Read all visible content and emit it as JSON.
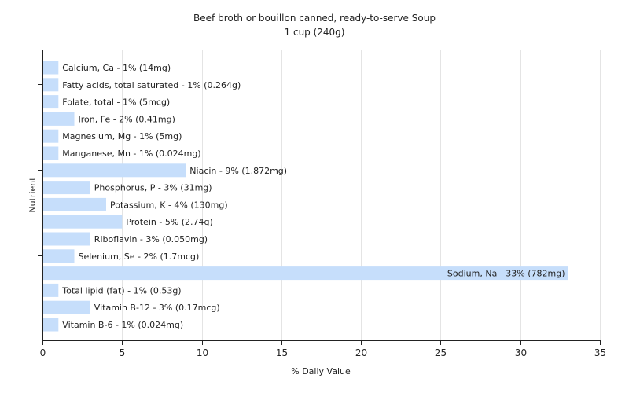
{
  "chart_data": {
    "type": "bar",
    "orientation": "horizontal",
    "title": "Beef broth or bouillon canned, ready-to-serve Soup",
    "subtitle": "1 cup (240g)",
    "xlabel": "% Daily Value",
    "ylabel": "Nutrient",
    "xlim": [
      0,
      35
    ],
    "xticks": [
      0,
      5,
      10,
      15,
      20,
      25,
      30,
      35
    ],
    "grid": true,
    "legend": "none",
    "colors": {
      "bar": "#c6defb",
      "grid": "#e4e4e4",
      "plot_background": "#ffffff",
      "axis": "#222222"
    },
    "categories": [
      "Calcium, Ca",
      "Fatty acids, total saturated",
      "Folate, total",
      "Iron, Fe",
      "Magnesium, Mg",
      "Manganese, Mn",
      "Niacin",
      "Phosphorus, P",
      "Potassium, K",
      "Protein",
      "Riboflavin",
      "Selenium, Se",
      "Sodium, Na",
      "Total lipid (fat)",
      "Vitamin B-12",
      "Vitamin B-6"
    ],
    "values": [
      1,
      1,
      1,
      2,
      1,
      1,
      9,
      3,
      4,
      5,
      3,
      2,
      33,
      1,
      3,
      1
    ],
    "labels": [
      "Calcium, Ca - 1% (14mg)",
      "Fatty acids, total saturated - 1% (0.264g)",
      "Folate, total - 1% (5mcg)",
      "Iron, Fe - 2% (0.41mg)",
      "Magnesium, Mg - 1% (5mg)",
      "Manganese, Mn - 1% (0.024mg)",
      "Niacin - 9% (1.872mg)",
      "Phosphorus, P - 3% (31mg)",
      "Potassium, K - 4% (130mg)",
      "Protein - 5% (2.74g)",
      "Riboflavin - 3% (0.050mg)",
      "Selenium, Se - 2% (1.7mcg)",
      "Sodium, Na - 33% (782mg)",
      "Total lipid (fat) - 1% (0.53g)",
      "Vitamin B-12 - 3% (0.17mcg)",
      "Vitamin B-6 - 1% (0.024mg)"
    ]
  }
}
